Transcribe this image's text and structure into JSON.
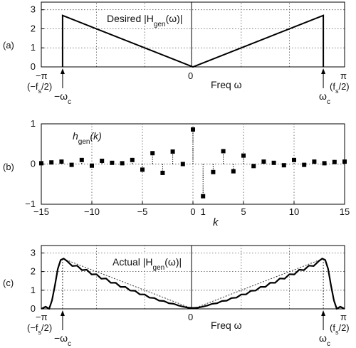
{
  "chart_data": [
    {
      "id": "a",
      "panel_label": "(a)",
      "type": "line",
      "title": "Desired |H",
      "title_sub": "gen",
      "title_tail": "(ω)|",
      "xlabel": "Freq ω",
      "xlim": [
        -3.1416,
        3.1416
      ],
      "ylim": [
        0,
        3.4
      ],
      "yticks": [
        "0",
        "1",
        "2",
        "3"
      ],
      "ytick_values": [
        0,
        1,
        2,
        3
      ],
      "x_tick_labels": {
        "left_main": "−π",
        "left_sub_pre": "(−f",
        "left_sub_s": "s",
        "left_sub_post": "/2)",
        "center": "0",
        "right_main": "π",
        "right_sub_pre": "(f",
        "right_sub_s": "s",
        "right_sub_post": "/2)"
      },
      "cutoff_labels": {
        "neg": "−ω",
        "pos": "ω",
        "sub": "c"
      },
      "cutoff": 2.7,
      "desired_peak": 2.7,
      "grid": true,
      "series": [
        {
          "x": [
            -2.7,
            -2.7,
            0,
            2.7,
            2.7
          ],
          "y": [
            0,
            2.7,
            0,
            2.7,
            0
          ]
        }
      ]
    },
    {
      "id": "b",
      "panel_label": "(b)",
      "type": "stem",
      "title": "h",
      "title_sub": "gen",
      "title_tail": "(k)",
      "xlabel": "k",
      "xlim": [
        -15,
        15
      ],
      "ylim": [
        -1,
        1
      ],
      "xticks": [
        "−15",
        "−10",
        "−5",
        "0",
        "5",
        "10",
        "15"
      ],
      "xtick_values": [
        -15,
        -10,
        -5,
        0,
        5,
        10,
        15
      ],
      "extra_tick_labels": [
        {
          "text": "1",
          "x": 1
        }
      ],
      "yticks": [
        "−1",
        "0",
        "1"
      ],
      "ytick_values": [
        -1,
        0,
        1
      ],
      "grid": true,
      "series": [
        {
          "x": [
            -15,
            -14,
            -13,
            -12,
            -11,
            -10,
            -9,
            -8,
            -7,
            -6,
            -5,
            -4,
            -3,
            -2,
            -1,
            0,
            1,
            2,
            3,
            4,
            5,
            6,
            7,
            8,
            9,
            10,
            11,
            12,
            13,
            14,
            15
          ],
          "y": [
            0.02,
            0.04,
            0.06,
            -0.02,
            0.1,
            -0.04,
            0.08,
            0.03,
            0.02,
            0.1,
            -0.14,
            0.27,
            -0.22,
            0.31,
            0.0,
            0.86,
            -0.8,
            -0.2,
            0.32,
            -0.18,
            0.21,
            -0.05,
            0.06,
            0.03,
            -0.03,
            0.1,
            -0.02,
            0.06,
            0.02,
            0.05,
            0.06
          ]
        }
      ]
    },
    {
      "id": "c",
      "panel_label": "(c)",
      "type": "line",
      "title": "Actual |H",
      "title_sub": "gen",
      "title_tail": "(ω)|",
      "xlabel": "Freq ω",
      "xlim": [
        -3.1416,
        3.1416
      ],
      "ylim": [
        0,
        3.4
      ],
      "yticks": [
        "0",
        "1",
        "2",
        "3"
      ],
      "ytick_values": [
        0,
        1,
        2,
        3
      ],
      "x_tick_labels": {
        "left_main": "−π",
        "left_sub_pre": "(−f",
        "left_sub_s": "s",
        "left_sub_post": "/2)",
        "center": "0",
        "right_main": "π",
        "right_sub_pre": "(f",
        "right_sub_s": "s",
        "right_sub_post": "/2)"
      },
      "cutoff_labels": {
        "neg": "−ω",
        "pos": "ω",
        "sub": "c"
      },
      "cutoff": 2.7,
      "desired_peak": 2.7,
      "grid": true,
      "series": [
        {
          "x": [
            -3.14,
            -3.05,
            -2.98,
            -2.92,
            -2.86,
            -2.8,
            -2.74,
            -2.68,
            -2.6,
            -2.5,
            -2.4,
            -2.3,
            -2.2,
            -2.1,
            -2.0,
            -1.9,
            -1.8,
            -1.7,
            -1.6,
            -1.5,
            -1.4,
            -1.3,
            -1.2,
            -1.1,
            -1.0,
            -0.9,
            -0.8,
            -0.7,
            -0.6,
            -0.5,
            -0.4,
            -0.3,
            -0.2,
            -0.1,
            0,
            0.1,
            0.2,
            0.3,
            0.4,
            0.5,
            0.6,
            0.7,
            0.8,
            0.9,
            1.0,
            1.1,
            1.2,
            1.3,
            1.4,
            1.5,
            1.6,
            1.7,
            1.8,
            1.9,
            2.0,
            2.1,
            2.2,
            2.3,
            2.4,
            2.5,
            2.6,
            2.68,
            2.74,
            2.8,
            2.86,
            2.92,
            2.98,
            3.05,
            3.14
          ],
          "y": [
            0.0,
            0.12,
            0.0,
            0.45,
            1.25,
            2.15,
            2.62,
            2.7,
            2.55,
            2.3,
            2.32,
            2.08,
            2.1,
            1.85,
            1.86,
            1.62,
            1.63,
            1.4,
            1.4,
            1.18,
            1.18,
            0.98,
            0.97,
            0.78,
            0.77,
            0.6,
            0.58,
            0.44,
            0.42,
            0.3,
            0.27,
            0.18,
            0.12,
            0.06,
            0.05,
            0.06,
            0.12,
            0.18,
            0.27,
            0.3,
            0.42,
            0.44,
            0.58,
            0.6,
            0.77,
            0.78,
            0.97,
            0.98,
            1.18,
            1.18,
            1.4,
            1.4,
            1.63,
            1.62,
            1.86,
            1.85,
            2.1,
            2.08,
            2.32,
            2.3,
            2.55,
            2.7,
            2.62,
            2.15,
            1.25,
            0.45,
            0.0,
            0.12,
            0.0
          ]
        }
      ]
    }
  ]
}
